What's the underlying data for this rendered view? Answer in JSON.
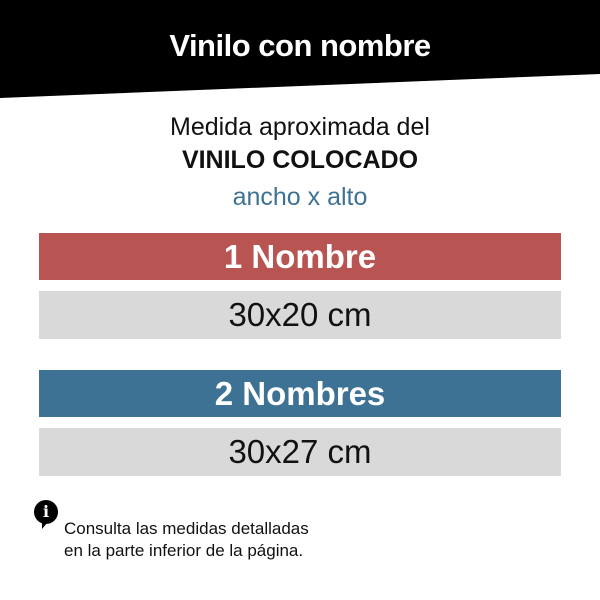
{
  "title": "Vinilo con nombre",
  "subtitle": {
    "line1": "Medida aproximada del",
    "line2": "VINILO COLOCADO",
    "line3": "ancho x alto"
  },
  "options": [
    {
      "label": "1 Nombre",
      "size": "30x20 cm",
      "color": "#b85452"
    },
    {
      "label": "2 Nombres",
      "size": "30x27 cm",
      "color": "#3e7294"
    }
  ],
  "note": {
    "icon": "info-icon",
    "line1": "Consulta las medidas detalladas",
    "line2": "en la parte inferior de la página."
  }
}
